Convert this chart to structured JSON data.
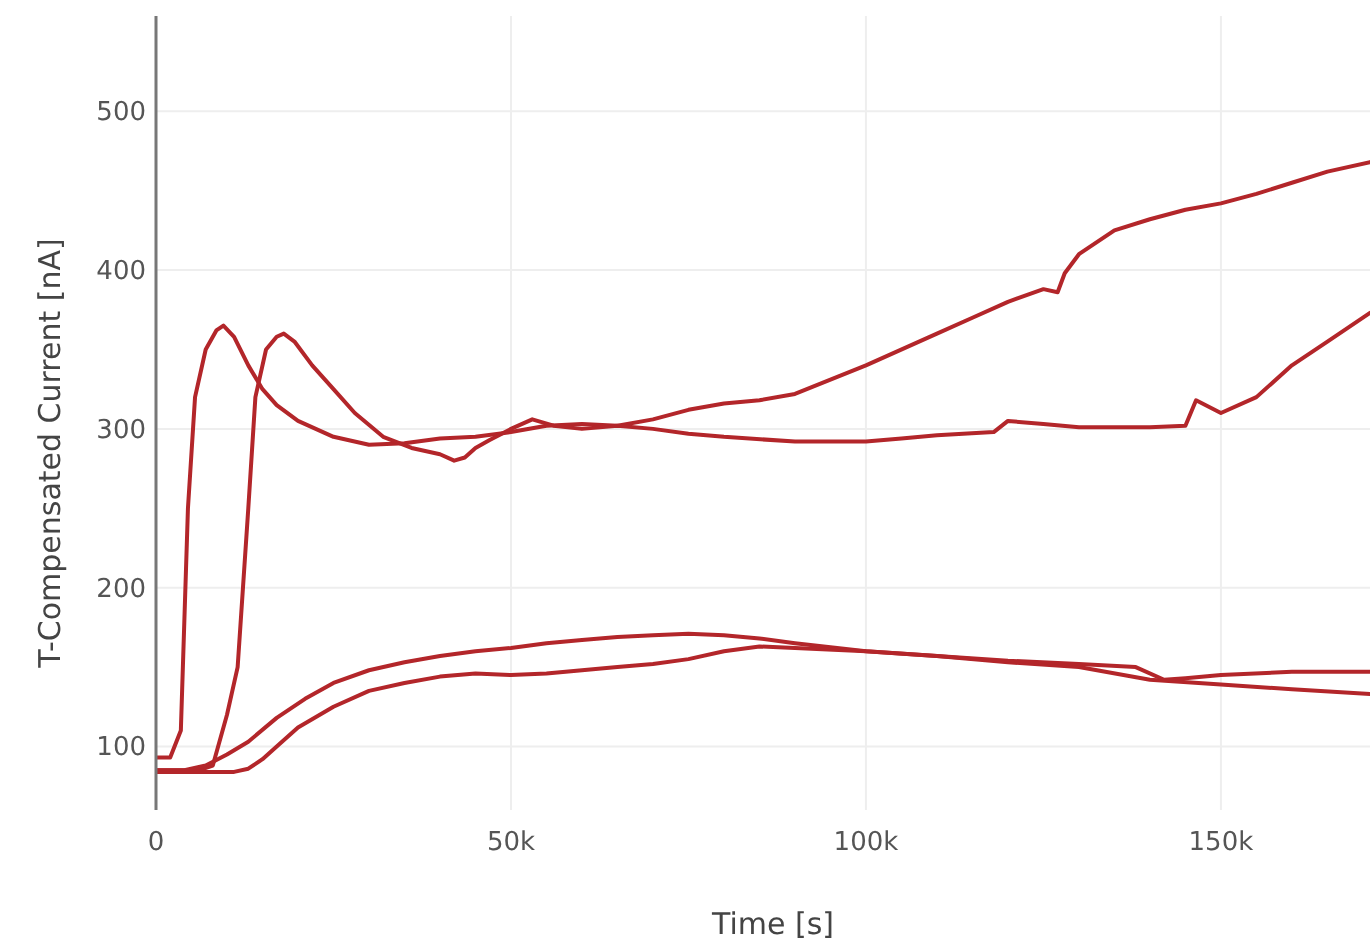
{
  "chart_data": {
    "type": "line",
    "xlabel": "Time [s]",
    "ylabel": "T-Compensated Current [nA]",
    "xlim": [
      0,
      171000
    ],
    "ylim": [
      60,
      560
    ],
    "xticks": [
      0,
      {
        "value": 50000,
        "label": "50k"
      },
      {
        "value": 100000,
        "label": "100k"
      },
      {
        "value": 150000,
        "label": "150k"
      }
    ],
    "yticks": [
      100,
      200,
      300,
      400,
      500
    ],
    "grid": true,
    "marker": "none",
    "line_style": "solid",
    "series": [
      {
        "color": "#b3262a",
        "x": [
          0,
          2000,
          3500,
          4500,
          5500,
          7000,
          8500,
          9500,
          11000,
          13000,
          15000,
          17000,
          20000,
          25000,
          30000,
          35000,
          40000,
          45000,
          50000,
          55000,
          60000,
          65000,
          70000,
          75000,
          80000,
          85000,
          90000,
          100000,
          110000,
          115000,
          120000,
          125000,
          127000,
          128000,
          130000,
          135000,
          140000,
          145000,
          150000,
          155000,
          160000,
          165000,
          171000
        ],
        "values": [
          93,
          93,
          110,
          250,
          320,
          350,
          362,
          365,
          358,
          340,
          325,
          315,
          305,
          295,
          290,
          291,
          294,
          295,
          298,
          302,
          303,
          302,
          306,
          312,
          316,
          318,
          322,
          340,
          360,
          370,
          380,
          388,
          386,
          398,
          410,
          425,
          432,
          438,
          442,
          448,
          455,
          462,
          468
        ]
      },
      {
        "color": "#b3262a",
        "x": [
          0,
          6000,
          8000,
          10000,
          11500,
          13000,
          14000,
          15500,
          17000,
          18000,
          19500,
          22000,
          25000,
          28000,
          32000,
          36000,
          40000,
          42000,
          43500,
          45000,
          47000,
          50000,
          53000,
          56000,
          60000,
          65000,
          70000,
          75000,
          80000,
          90000,
          100000,
          105000,
          110000,
          118000,
          120000,
          125000,
          130000,
          140000,
          145000,
          146500,
          150000,
          155000,
          160000,
          165000,
          171000
        ],
        "values": [
          85,
          85,
          88,
          120,
          150,
          250,
          320,
          350,
          358,
          360,
          355,
          340,
          325,
          310,
          295,
          288,
          284,
          280,
          282,
          288,
          293,
          300,
          306,
          302,
          300,
          302,
          300,
          297,
          295,
          292,
          292,
          294,
          296,
          298,
          305,
          303,
          301,
          301,
          302,
          318,
          310,
          320,
          340,
          355,
          373
        ]
      },
      {
        "color": "#b3262a",
        "x": [
          0,
          4000,
          7000,
          10000,
          13000,
          17000,
          21000,
          25000,
          30000,
          35000,
          40000,
          45000,
          50000,
          55000,
          60000,
          65000,
          70000,
          75000,
          80000,
          85000,
          90000,
          100000,
          110000,
          120000,
          130000,
          140000,
          150000,
          160000,
          171000
        ],
        "values": [
          85,
          85,
          88,
          95,
          103,
          118,
          130,
          140,
          148,
          153,
          157,
          160,
          162,
          165,
          167,
          169,
          170,
          171,
          170,
          168,
          165,
          160,
          157,
          153,
          150,
          142,
          139,
          136,
          133
        ]
      },
      {
        "color": "#b3262a",
        "x": [
          0,
          8000,
          11000,
          13000,
          15000,
          17000,
          20000,
          25000,
          30000,
          35000,
          40000,
          45000,
          50000,
          55000,
          60000,
          65000,
          70000,
          75000,
          80000,
          85000,
          90000,
          100000,
          110000,
          120000,
          130000,
          138000,
          142000,
          145000,
          150000,
          160000,
          171000
        ],
        "values": [
          84,
          84,
          84,
          86,
          92,
          100,
          112,
          125,
          135,
          140,
          144,
          146,
          145,
          146,
          148,
          150,
          152,
          155,
          160,
          163,
          162,
          160,
          157,
          154,
          152,
          150,
          142,
          143,
          145,
          147,
          147
        ]
      }
    ]
  }
}
